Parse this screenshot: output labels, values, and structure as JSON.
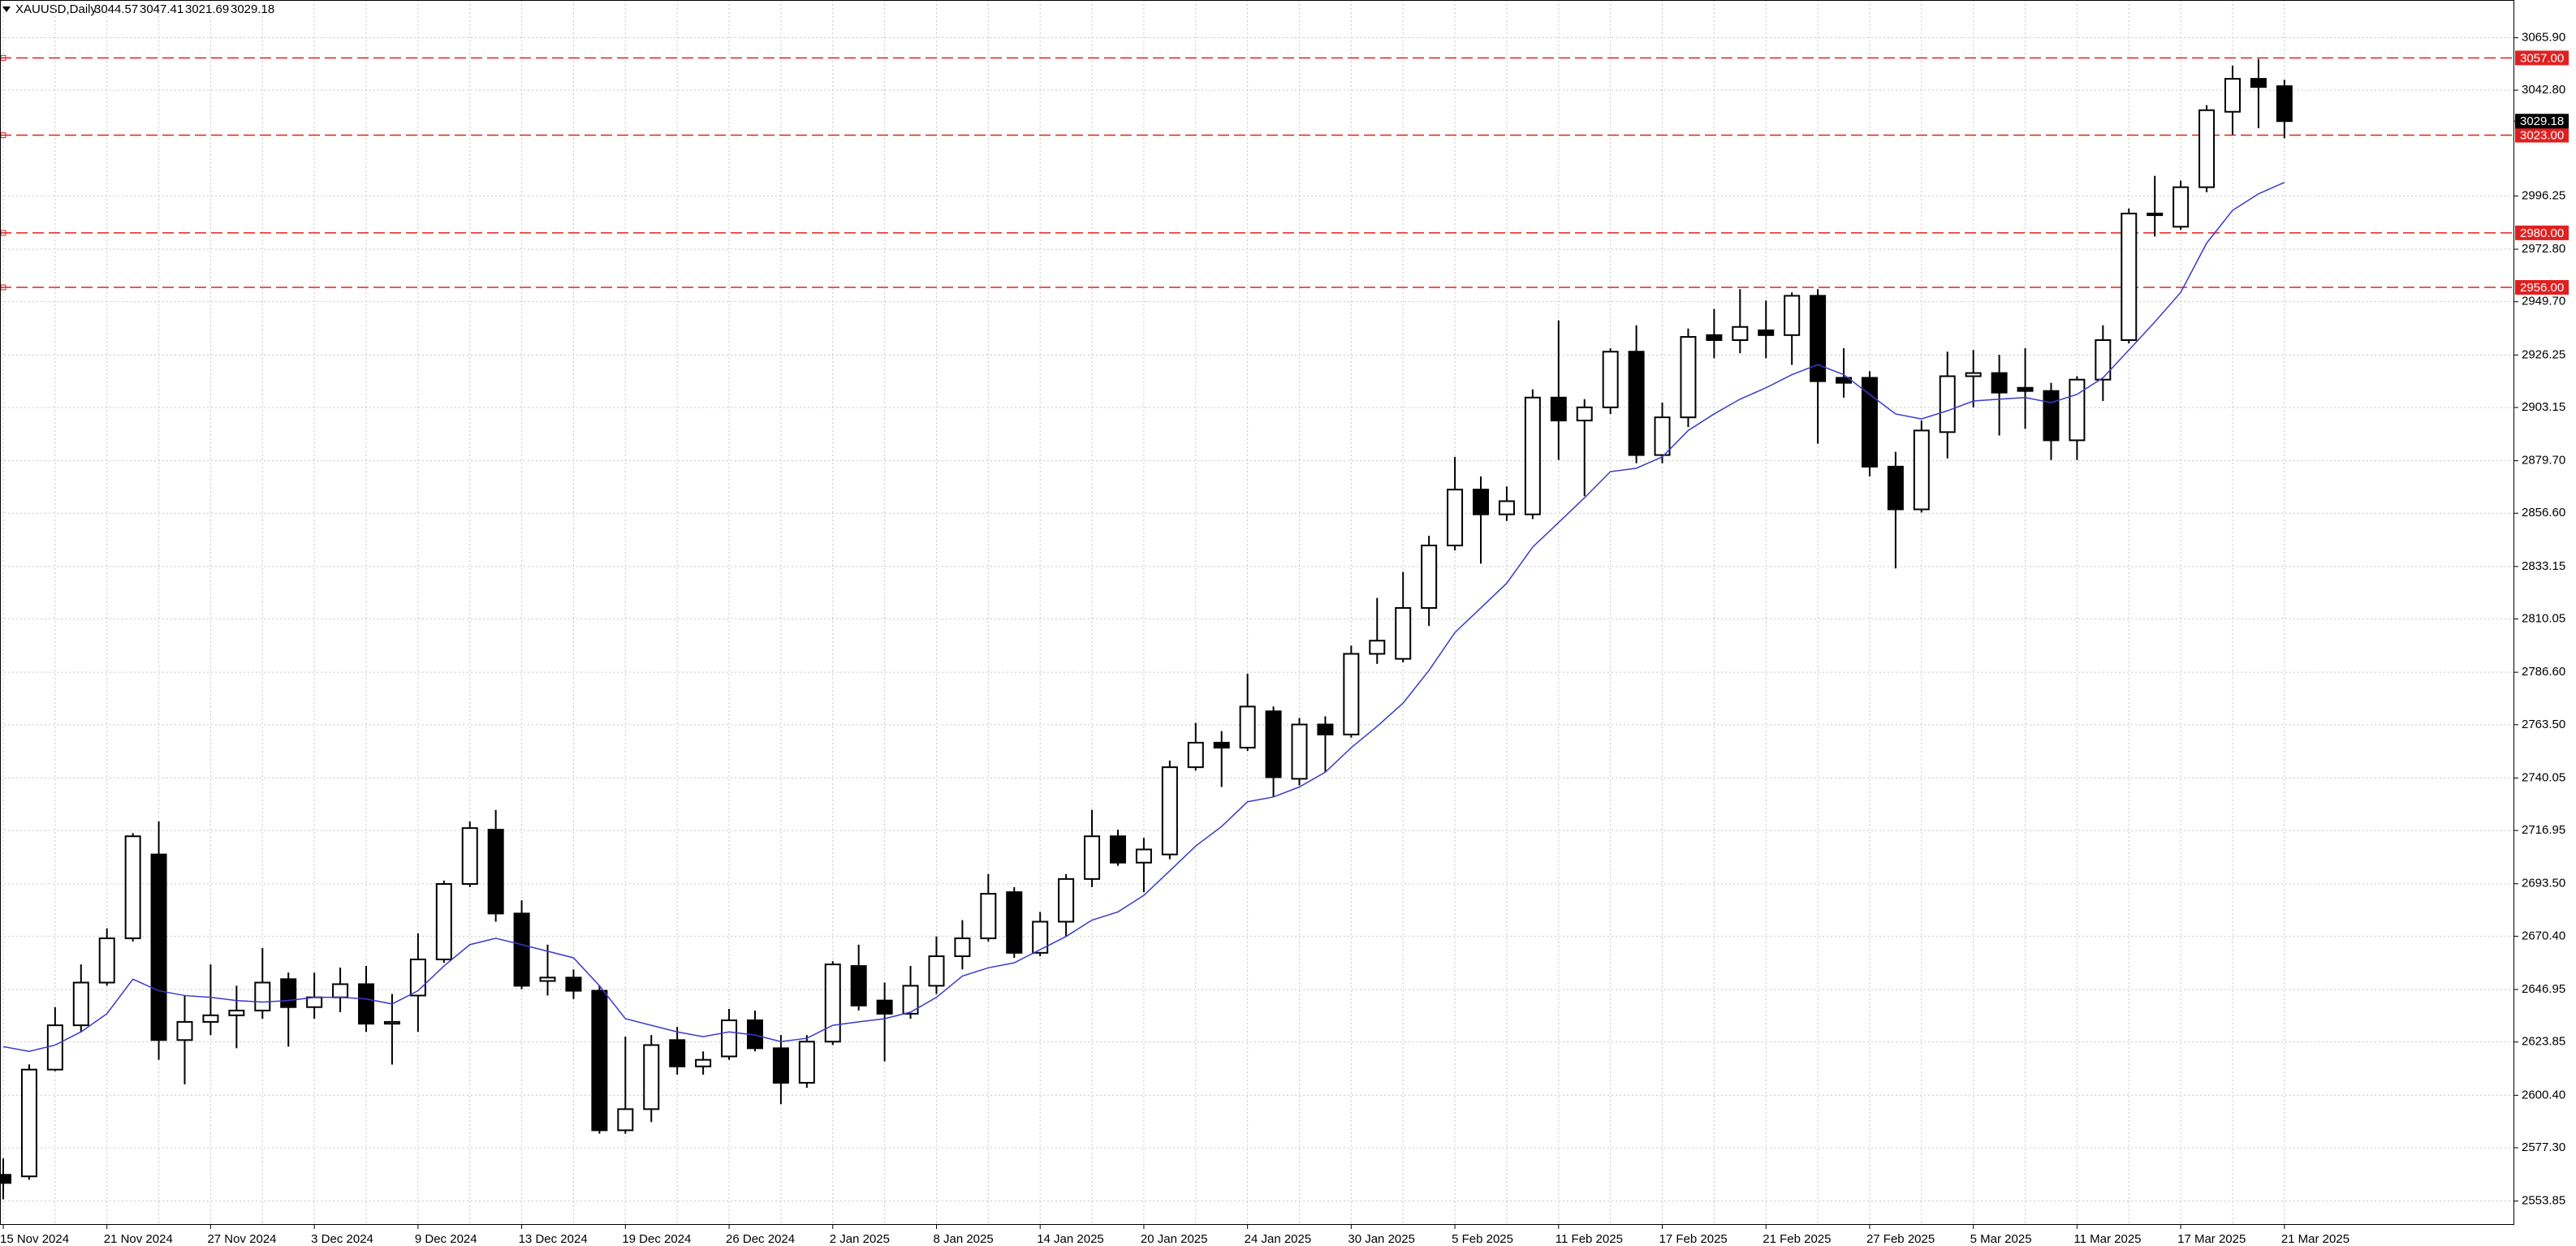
{
  "chart_data": {
    "type": "candlestick",
    "title": "XAUUSD,Daily",
    "categories": [
      "15 Nov 2024",
      null,
      null,
      null,
      "21 Nov 2024",
      null,
      null,
      null,
      "27 Nov 2024",
      null,
      null,
      null,
      "3 Dec 2024",
      null,
      null,
      null,
      "9 Dec 2024",
      null,
      null,
      null,
      "13 Dec 2024",
      null,
      null,
      null,
      "19 Dec 2024",
      null,
      null,
      null,
      "26 Dec 2024",
      null,
      null,
      null,
      "2 Jan 2025",
      null,
      null,
      null,
      "8 Jan 2025",
      null,
      null,
      null,
      "14 Jan 2025",
      null,
      null,
      null,
      "20 Jan 2025",
      null,
      null,
      null,
      "24 Jan 2025",
      null,
      null,
      null,
      "30 Jan 2025",
      null,
      null,
      null,
      "5 Feb 2025",
      null,
      null,
      null,
      "11 Feb 2025",
      null,
      null,
      null,
      "17 Feb 2025",
      null,
      null,
      null,
      "21 Feb 2025",
      null,
      null,
      null,
      "27 Feb 2025",
      null,
      null,
      null,
      "5 Mar 2025",
      null,
      null,
      null,
      "11 Mar 2025",
      null,
      null,
      null,
      "17 Mar 2025",
      null,
      null,
      null,
      "21 Mar 2025"
    ],
    "open": [
      2565.4,
      2564.7,
      2611.7,
      2631.2,
      2650.0,
      2669.5,
      2706.4,
      2624.7,
      2632.7,
      2635.6,
      2637.7,
      2651.5,
      2639.2,
      2643.5,
      2649.3,
      2631.9,
      2644.3,
      2660.2,
      2693.4,
      2717.3,
      2680.4,
      2650.7,
      2652.2,
      2646.4,
      2585.0,
      2594.3,
      2624.7,
      2613.1,
      2617.5,
      2633.4,
      2621.1,
      2605.9,
      2624.0,
      2657.3,
      2642.1,
      2636.3,
      2648.6,
      2661.6,
      2669.5,
      2689.8,
      2663.1,
      2676.8,
      2695.6,
      2714.4,
      2702.8,
      2706.4,
      2744.8,
      2755.6,
      2753.4,
      2769.4,
      2739.7,
      2763.6,
      2759.2,
      2794.7,
      2792.5,
      2814.9,
      2842.4,
      2867.0,
      2856.1,
      2856.1,
      2907.5,
      2897.4,
      2903.2,
      2927.7,
      2882.2,
      2898.8,
      2935.0,
      2932.8,
      2937.1,
      2935.0,
      2952.3,
      2916.2,
      2916.2,
      2877.1,
      2858.3,
      2892.3,
      2916.9,
      2918.3,
      2911.8,
      2910.4,
      2888.7,
      2915.4,
      2932.8,
      2987.8,
      2982.7,
      3000.1,
      3033.3,
      3047.8,
      3044.57
    ],
    "high": [
      2572.6,
      2614.0,
      2639.2,
      2658.0,
      2673.9,
      2715.8,
      2720.9,
      2644.2,
      2658.0,
      2648.6,
      2665.2,
      2654.4,
      2654.4,
      2656.6,
      2657.3,
      2645.0,
      2671.7,
      2694.9,
      2720.9,
      2726.0,
      2686.2,
      2666.7,
      2655.8,
      2648.6,
      2626.2,
      2626.9,
      2630.5,
      2619.7,
      2638.4,
      2637.7,
      2626.9,
      2626.9,
      2659.4,
      2666.7,
      2650.0,
      2657.3,
      2670.3,
      2677.5,
      2697.8,
      2692.0,
      2681.1,
      2697.8,
      2726.0,
      2717.3,
      2713.7,
      2747.7,
      2764.3,
      2760.7,
      2786.0,
      2771.5,
      2766.5,
      2767.2,
      2798.3,
      2819.3,
      2830.8,
      2846.7,
      2881.4,
      2872.8,
      2868.4,
      2911.1,
      2941.5,
      2906.8,
      2929.2,
      2939.3,
      2905.3,
      2937.9,
      2946.5,
      2955.2,
      2950.2,
      2953.8,
      2955.2,
      2929.2,
      2919.1,
      2883.6,
      2897.4,
      2927.7,
      2928.4,
      2926.3,
      2929.2,
      2914.0,
      2916.9,
      2939.3,
      2990.7,
      3005.1,
      3003.0,
      3036.2,
      3053.6,
      3056.5,
      3047.41
    ],
    "low": [
      2554.6,
      2563.2,
      2611.0,
      2628.3,
      2648.6,
      2668.1,
      2616.0,
      2605.2,
      2626.9,
      2621.1,
      2634.1,
      2621.8,
      2634.1,
      2637.0,
      2628.3,
      2613.9,
      2628.3,
      2658.7,
      2692.0,
      2676.8,
      2647.1,
      2644.3,
      2642.8,
      2583.5,
      2583.5,
      2588.6,
      2609.5,
      2609.5,
      2616.0,
      2619.7,
      2596.5,
      2603.7,
      2622.5,
      2637.7,
      2615.3,
      2634.1,
      2645.0,
      2655.8,
      2668.1,
      2660.9,
      2661.6,
      2670.3,
      2692.0,
      2701.4,
      2689.8,
      2704.3,
      2743.3,
      2736.1,
      2752.0,
      2731.7,
      2736.8,
      2742.6,
      2757.8,
      2790.3,
      2791.0,
      2807.0,
      2840.2,
      2834.4,
      2853.2,
      2854.0,
      2880.0,
      2864.1,
      2900.3,
      2878.6,
      2878.6,
      2894.5,
      2924.8,
      2927.0,
      2924.8,
      2921.9,
      2887.2,
      2907.5,
      2872.8,
      2832.3,
      2856.9,
      2880.7,
      2903.2,
      2890.8,
      2893.7,
      2880.0,
      2880.0,
      2906.0,
      2931.3,
      2978.4,
      2981.3,
      2997.9,
      3023.2,
      3026.1,
      3021.69
    ],
    "close": [
      2561.8,
      2611.7,
      2631.2,
      2650.0,
      2669.5,
      2714.4,
      2624.7,
      2632.7,
      2635.6,
      2637.7,
      2650.0,
      2639.2,
      2643.5,
      2649.3,
      2631.9,
      2632.7,
      2660.2,
      2693.4,
      2718.0,
      2680.4,
      2648.6,
      2652.2,
      2646.4,
      2585.0,
      2594.3,
      2622.5,
      2613.1,
      2616.0,
      2633.4,
      2621.1,
      2605.9,
      2624.0,
      2658.0,
      2639.9,
      2636.3,
      2648.6,
      2661.6,
      2669.5,
      2689.1,
      2663.1,
      2676.8,
      2695.6,
      2714.4,
      2702.8,
      2708.6,
      2744.8,
      2755.6,
      2753.4,
      2771.5,
      2740.4,
      2763.6,
      2759.2,
      2794.7,
      2800.5,
      2814.9,
      2842.4,
      2867.0,
      2856.1,
      2861.9,
      2907.5,
      2897.4,
      2903.2,
      2927.7,
      2882.2,
      2898.8,
      2934.2,
      2932.8,
      2938.6,
      2935.0,
      2952.3,
      2914.7,
      2914.0,
      2877.1,
      2858.3,
      2893.0,
      2916.9,
      2918.3,
      2909.7,
      2910.4,
      2888.7,
      2915.4,
      2932.8,
      2988.5,
      2988.5,
      3000.1,
      3034.0,
      3047.8,
      3044.2,
      3029.18
    ],
    "bull_color": "#ffffff",
    "bear_color": "#000000",
    "ma": {
      "color": "#3a3acc",
      "values": [
        2621.8,
        2619.7,
        2622.5,
        2628.3,
        2636.3,
        2651.5,
        2646.4,
        2644.3,
        2643.5,
        2642.1,
        2641.4,
        2642.1,
        2643.5,
        2643.5,
        2642.8,
        2640.6,
        2646.4,
        2657.3,
        2666.7,
        2669.5,
        2666.7,
        2663.8,
        2660.9,
        2648.6,
        2634.1,
        2631.2,
        2628.3,
        2626.2,
        2628.3,
        2626.9,
        2624.0,
        2625.5,
        2631.2,
        2632.7,
        2634.1,
        2637.0,
        2643.5,
        2652.9,
        2656.5,
        2658.7,
        2664.5,
        2670.3,
        2677.5,
        2681.1,
        2688.4,
        2699.2,
        2710.1,
        2718.7,
        2729.6,
        2731.7,
        2736.1,
        2742.6,
        2753.4,
        2762.8,
        2773.0,
        2787.4,
        2804.1,
        2814.9,
        2825.8,
        2841.7,
        2852.5,
        2863.4,
        2874.9,
        2876.4,
        2881.4,
        2893.0,
        2900.3,
        2906.8,
        2911.8,
        2917.6,
        2922.0,
        2917.6,
        2908.9,
        2900.3,
        2898.1,
        2901.7,
        2906.0,
        2906.8,
        2907.5,
        2905.3,
        2908.9,
        2916.2,
        2928.4,
        2940.8,
        2953.8,
        2975.5,
        2989.9,
        2997.2,
        3002.2
      ]
    },
    "levels": {
      "color": "#e02020",
      "values": [
        {
          "value": 3057,
          "label": "3057.00"
        },
        {
          "value": 3023,
          "label": "3023.00"
        },
        {
          "value": 2980,
          "label": "2980.00"
        },
        {
          "value": 2956,
          "label": "2956.00"
        }
      ]
    },
    "ylim": [
      2543.7,
      3082.5
    ],
    "yticks": [
      {
        "value": 3065.9,
        "label": "3065.90"
      },
      {
        "value": 3042.8,
        "label": "3042.80"
      },
      2996.25,
      {
        "value": 2972.8,
        "label": "2972.80"
      },
      {
        "value": 2949.7,
        "label": "2949.70"
      },
      2926.25,
      2903.15,
      {
        "value": 2879.7,
        "label": "2879.70"
      },
      {
        "value": 2856.6,
        "label": "2856.60"
      },
      2833.15,
      2810.05,
      {
        "value": 2786.6,
        "label": "2786.60"
      },
      {
        "value": 2763.5,
        "label": "2763.50"
      },
      2740.05,
      2716.95,
      {
        "value": 2693.5,
        "label": "2693.50"
      },
      {
        "value": 2670.4,
        "label": "2670.40"
      },
      2646.95,
      2623.85,
      {
        "value": 2600.4,
        "label": "2600.40"
      },
      {
        "value": 2577.3,
        "label": "2577.30"
      },
      2553.85
    ],
    "grid": true
  }
}
